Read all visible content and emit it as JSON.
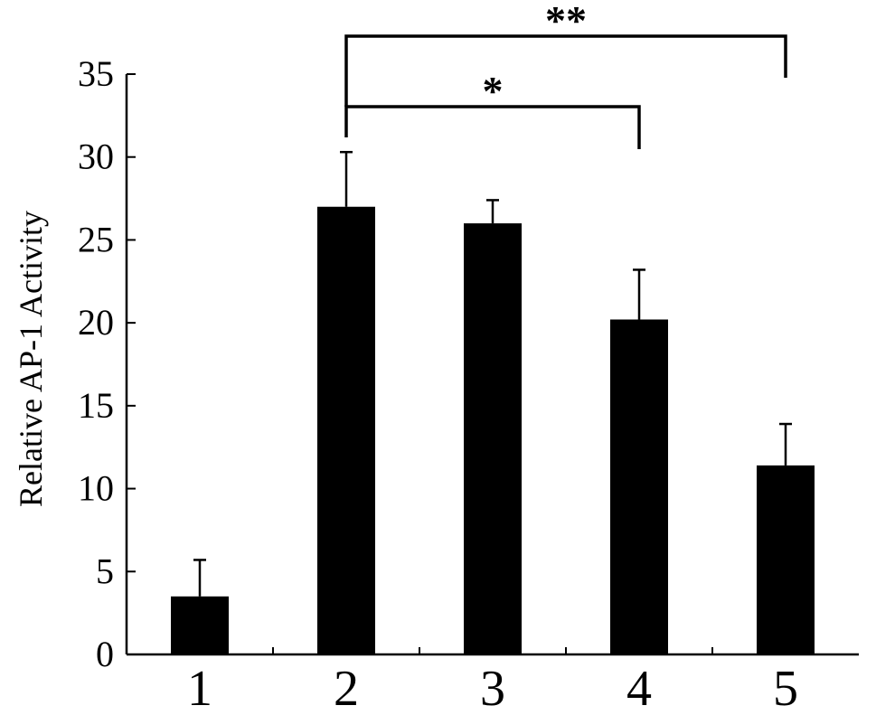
{
  "chart_data": {
    "type": "bar",
    "categories": [
      "1",
      "2",
      "3",
      "4",
      "5"
    ],
    "values": [
      3.5,
      27.0,
      26.0,
      20.2,
      11.4
    ],
    "errors": [
      2.2,
      3.3,
      1.4,
      3.0,
      2.5
    ],
    "xlabel": "",
    "ylabel": "Relative AP-1 Activity",
    "ylim": [
      0,
      35
    ],
    "yticks": [
      0,
      5,
      10,
      15,
      20,
      25,
      30,
      35
    ],
    "yticklabels": [
      "0",
      "5",
      "10",
      "15",
      "20",
      "25",
      "30",
      "35"
    ],
    "grid": false,
    "bar_color": "#000000",
    "significance": [
      {
        "from": "2",
        "to": "4",
        "label": "*"
      },
      {
        "from": "2",
        "to": "5",
        "label": "**"
      }
    ]
  }
}
